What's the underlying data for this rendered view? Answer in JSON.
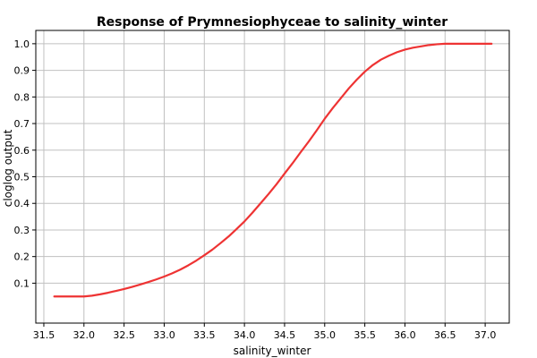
{
  "chart_data": {
    "type": "line",
    "title": "Response of Prymnesiophyceae to salinity_winter",
    "xlabel": "salinity_winter",
    "ylabel": "cloglog output",
    "xlim": [
      31.4,
      37.3
    ],
    "ylim": [
      -0.05,
      1.05
    ],
    "xticks": [
      "31.5",
      "32.0",
      "32.5",
      "33.0",
      "33.5",
      "34.0",
      "34.5",
      "35.0",
      "35.5",
      "36.0",
      "36.5",
      "37.0"
    ],
    "yticks": [
      "0.1",
      "0.2",
      "0.3",
      "0.4",
      "0.5",
      "0.6",
      "0.7",
      "0.8",
      "0.9",
      "1.0"
    ],
    "grid": true,
    "line_color": "#ee3333",
    "series": [
      {
        "x": [
          31.63,
          31.8,
          32.0,
          32.1,
          32.2,
          32.3,
          32.4,
          32.5,
          32.6,
          32.7,
          32.8,
          32.9,
          33.0,
          33.1,
          33.2,
          33.3,
          33.4,
          33.5,
          33.6,
          33.7,
          33.8,
          33.9,
          34.0,
          34.1,
          34.2,
          34.3,
          34.4,
          34.5,
          34.6,
          34.7,
          34.8,
          34.9,
          35.0,
          35.1,
          35.2,
          35.3,
          35.4,
          35.5,
          35.6,
          35.7,
          35.8,
          35.9,
          36.0,
          36.1,
          36.2,
          36.3,
          36.4,
          36.5,
          36.7,
          36.9,
          37.08
        ],
        "y": [
          0.05,
          0.05,
          0.05,
          0.053,
          0.058,
          0.064,
          0.071,
          0.078,
          0.086,
          0.095,
          0.104,
          0.114,
          0.125,
          0.137,
          0.151,
          0.167,
          0.185,
          0.205,
          0.226,
          0.25,
          0.275,
          0.303,
          0.332,
          0.365,
          0.4,
          0.435,
          0.472,
          0.512,
          0.551,
          0.592,
          0.632,
          0.674,
          0.718,
          0.758,
          0.795,
          0.832,
          0.865,
          0.895,
          0.92,
          0.94,
          0.955,
          0.968,
          0.978,
          0.985,
          0.99,
          0.995,
          0.998,
          1.0,
          1.0,
          1.0,
          1.0
        ]
      }
    ]
  }
}
